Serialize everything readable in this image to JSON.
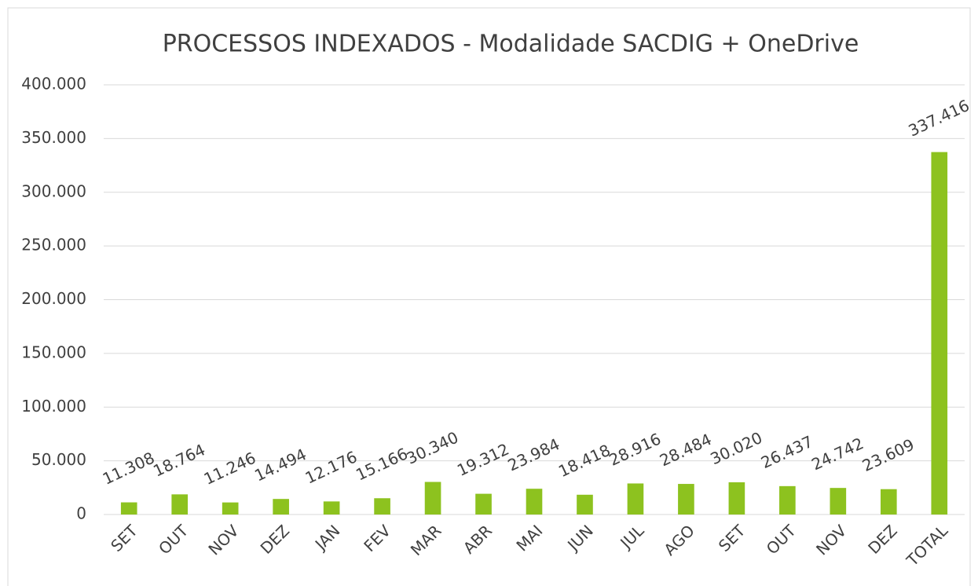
{
  "chart_data": {
    "type": "bar",
    "title": "PROCESSOS INDEXADOS - Modalidade SACDIG + OneDrive",
    "categories": [
      "SET",
      "OUT",
      "NOV",
      "DEZ",
      "JAN",
      "FEV",
      "MAR",
      "ABR",
      "MAI",
      "JUN",
      "JUL",
      "AGO",
      "SET",
      "OUT",
      "NOV",
      "DEZ",
      "TOTAL"
    ],
    "values": [
      11308,
      18764,
      11246,
      14494,
      12176,
      15166,
      30340,
      19312,
      23984,
      18418,
      28916,
      28484,
      30020,
      26437,
      24742,
      23609,
      337416
    ],
    "value_labels": [
      "11.308",
      "18.764",
      "11.246",
      "14.494",
      "12.176",
      "15.166",
      "30.340",
      "19.312",
      "23.984",
      "18.418",
      "28.916",
      "28.484",
      "30.020",
      "26.437",
      "24.742",
      "23.609",
      "337.416"
    ],
    "color": "#8dc21f",
    "ylim": [
      0,
      400000
    ],
    "yticks": [
      0,
      {
        "value": 50000,
        "label": "50.000"
      },
      {
        "value": 100000,
        "label": "100.000"
      },
      {
        "value": 150000,
        "label": "150.000"
      },
      {
        "value": 200000,
        "label": "200.000"
      },
      {
        "value": 250000,
        "label": "250.000"
      },
      {
        "value": 300000,
        "label": "300.000"
      },
      {
        "value": 350000,
        "label": "350.000"
      },
      {
        "value": 400000,
        "label": "400.000"
      }
    ],
    "grid": true
  }
}
